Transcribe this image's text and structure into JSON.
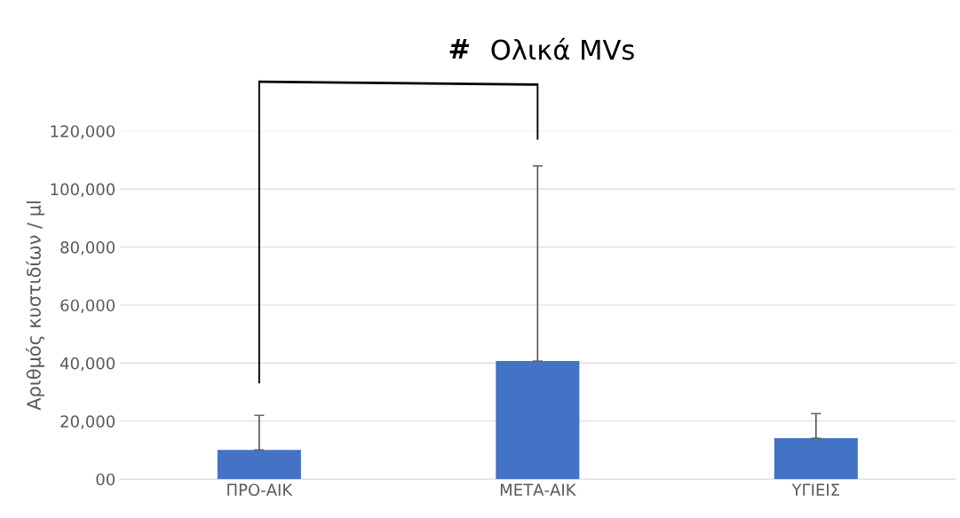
{
  "chart_data": {
    "type": "bar",
    "title": "Ολικά MVs",
    "ylabel": "Αριθμός κυστιδίων / μl",
    "categories": [
      "ΠΡΟ-ΑΙΚ",
      "ΜΕΤΑ-ΑΙΚ",
      "ΥΓΙΕΙΣ"
    ],
    "values": [
      10100,
      40700,
      14100
    ],
    "color": "#4472c4",
    "errors": [
      [
        10100,
        22000
      ],
      [
        40700,
        108000
      ],
      [
        14100,
        22600
      ]
    ],
    "ylim": [
      0,
      120000
    ],
    "yticks": [
      {
        "value": 0,
        "label": "00"
      },
      {
        "value": 20000,
        "label": "20,000"
      },
      {
        "value": 40000,
        "label": "40,000"
      },
      {
        "value": 60000,
        "label": "60,000"
      },
      {
        "value": 80000,
        "label": "80,000"
      },
      {
        "value": 100000,
        "label": "100,000"
      },
      {
        "value": 120000,
        "label": "120,000"
      }
    ],
    "grid": "y",
    "annotations": [
      "#"
    ]
  }
}
